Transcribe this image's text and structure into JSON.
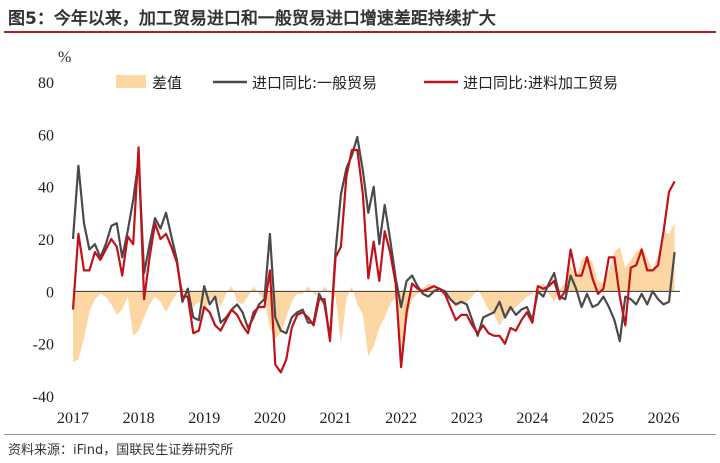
{
  "title": "图5：今年以来，加工贸易进口和一般贸易进口增速差距持续扩大",
  "source": "资料来源：iFind，国联民生证券研究所",
  "chart_data": {
    "type": "line",
    "ylabel": "%",
    "ylim": [
      -40,
      80
    ],
    "yticks": [
      -40,
      -20,
      0,
      20,
      40,
      60,
      80
    ],
    "xlim": [
      2017.0,
      2026.25
    ],
    "xticks": [
      "2017",
      "2018",
      "2019",
      "2020",
      "2021",
      "2022",
      "2023",
      "2024",
      "2025",
      "2026"
    ],
    "legend_position": "top",
    "colors": {
      "diff": "#fcd7a4",
      "general": "#4a4a4a",
      "processing": "#c0121a"
    },
    "series": [
      {
        "name": "差值",
        "type": "area",
        "x": [
          2017.0,
          2017.083,
          2017.167,
          2017.25,
          2017.333,
          2017.417,
          2017.5,
          2017.583,
          2017.667,
          2017.75,
          2017.833,
          2017.917,
          2018.0,
          2018.083,
          2018.167,
          2018.25,
          2018.333,
          2018.417,
          2018.5,
          2018.583,
          2018.667,
          2018.75,
          2018.833,
          2018.917,
          2019.0,
          2019.083,
          2019.167,
          2019.25,
          2019.333,
          2019.417,
          2019.5,
          2019.583,
          2019.667,
          2019.75,
          2019.833,
          2019.917,
          2020.0,
          2020.083,
          2020.167,
          2020.25,
          2020.333,
          2020.417,
          2020.5,
          2020.583,
          2020.667,
          2020.75,
          2020.833,
          2020.917,
          2021.0,
          2021.083,
          2021.167,
          2021.25,
          2021.333,
          2021.417,
          2021.5,
          2021.583,
          2021.667,
          2021.75,
          2021.833,
          2021.917,
          2022.0,
          2022.083,
          2022.167,
          2022.25,
          2022.333,
          2022.417,
          2022.5,
          2022.583,
          2022.667,
          2022.75,
          2022.833,
          2022.917,
          2023.0,
          2023.083,
          2023.167,
          2023.25,
          2023.333,
          2023.417,
          2023.5,
          2023.583,
          2023.667,
          2023.75,
          2023.833,
          2023.917,
          2024.0,
          2024.083,
          2024.167,
          2024.25,
          2024.333,
          2024.417,
          2024.5,
          2024.583,
          2024.667,
          2024.75,
          2024.833,
          2024.917,
          2025.0,
          2025.083,
          2025.167,
          2025.25,
          2025.333,
          2025.417,
          2025.5,
          2025.583,
          2025.667,
          2025.75,
          2025.833,
          2025.917,
          2026.0,
          2026.083,
          2026.167
        ],
        "values": [
          -27,
          -26,
          -18,
          -8,
          -3,
          -1,
          -2,
          -5,
          -9,
          -7,
          -2,
          -17,
          -15,
          -10,
          -5,
          -2,
          -4,
          -8,
          -4,
          -1,
          2,
          -3,
          -6,
          -4,
          -8,
          -3,
          -2,
          -6,
          -1,
          2,
          -4,
          -5,
          -2,
          2,
          -1,
          -3,
          -14,
          -18,
          -16,
          -10,
          -4,
          -1,
          -1,
          2,
          -1,
          -2,
          2,
          -1,
          -2,
          -20,
          -3,
          2,
          -5,
          -9,
          -25,
          -21,
          -14,
          -10,
          -5,
          -2,
          -23,
          -12,
          -3,
          -1,
          1,
          3,
          2,
          0,
          -1,
          -3,
          -6,
          -5,
          -4,
          -2,
          1,
          -3,
          -7,
          -9,
          -13,
          -10,
          -8,
          -6,
          -4,
          -2,
          -1,
          2,
          3,
          -1,
          -4,
          1,
          3,
          10,
          5,
          12,
          14,
          11,
          4,
          3,
          8,
          15,
          17,
          9,
          12,
          15,
          17,
          13,
          8,
          14,
          23,
          22,
          26
        ],
        "value_labels": []
      },
      {
        "name": "进口同比:一般贸易",
        "type": "line",
        "x": [
          2017.0,
          2017.083,
          2017.167,
          2017.25,
          2017.333,
          2017.417,
          2017.5,
          2017.583,
          2017.667,
          2017.75,
          2017.833,
          2017.917,
          2018.0,
          2018.083,
          2018.167,
          2018.25,
          2018.333,
          2018.417,
          2018.5,
          2018.583,
          2018.667,
          2018.75,
          2018.833,
          2018.917,
          2019.0,
          2019.083,
          2019.167,
          2019.25,
          2019.333,
          2019.417,
          2019.5,
          2019.583,
          2019.667,
          2019.75,
          2019.833,
          2019.917,
          2020.0,
          2020.083,
          2020.167,
          2020.25,
          2020.333,
          2020.417,
          2020.5,
          2020.583,
          2020.667,
          2020.75,
          2020.833,
          2020.917,
          2021.0,
          2021.083,
          2021.167,
          2021.25,
          2021.333,
          2021.417,
          2021.5,
          2021.583,
          2021.667,
          2021.75,
          2021.833,
          2021.917,
          2022.0,
          2022.083,
          2022.167,
          2022.25,
          2022.333,
          2022.417,
          2022.5,
          2022.583,
          2022.667,
          2022.75,
          2022.833,
          2022.917,
          2023.0,
          2023.083,
          2023.167,
          2023.25,
          2023.333,
          2023.417,
          2023.5,
          2023.583,
          2023.667,
          2023.75,
          2023.833,
          2023.917,
          2024.0,
          2024.083,
          2024.167,
          2024.25,
          2024.333,
          2024.417,
          2024.5,
          2024.583,
          2024.667,
          2024.75,
          2024.833,
          2024.917,
          2025.0,
          2025.083,
          2025.167,
          2025.25,
          2025.333,
          2025.417,
          2025.5,
          2025.583,
          2025.667,
          2025.75,
          2025.833,
          2025.917,
          2026.0,
          2026.083,
          2026.167
        ],
        "values": [
          20,
          48,
          26,
          16,
          18,
          13,
          18,
          25,
          26,
          13,
          23,
          35,
          50,
          7,
          18,
          28,
          24,
          30,
          21,
          12,
          -4,
          1,
          -10,
          -11,
          2,
          -5,
          -2,
          -12,
          -10,
          -7,
          -5,
          -8,
          -14,
          -10,
          -5,
          -3,
          22,
          -10,
          -15,
          -16,
          -10,
          -8,
          -7,
          -12,
          -12,
          -1,
          -5,
          -18,
          15,
          37,
          47,
          52,
          59,
          46,
          30,
          40,
          18,
          33,
          20,
          5,
          -6,
          4,
          6,
          2,
          -1,
          -2,
          0,
          1,
          0,
          -3,
          -5,
          -4,
          -5,
          -11,
          -17,
          -10,
          -9,
          -8,
          -4,
          -10,
          -6,
          -9,
          -7,
          -6,
          -11,
          0,
          -2,
          3,
          7,
          -2,
          -3,
          6,
          1,
          -6,
          -1,
          -6,
          -5,
          -2,
          -6,
          -11,
          -19,
          -2,
          -3,
          -5,
          -1,
          -5,
          0,
          -3,
          -5,
          -4,
          15
        ]
      },
      {
        "name": "进口同比:进料加工贸易",
        "type": "line",
        "x": [
          2017.0,
          2017.083,
          2017.167,
          2017.25,
          2017.333,
          2017.417,
          2017.5,
          2017.583,
          2017.667,
          2017.75,
          2017.833,
          2017.917,
          2018.0,
          2018.083,
          2018.167,
          2018.25,
          2018.333,
          2018.417,
          2018.5,
          2018.583,
          2018.667,
          2018.75,
          2018.833,
          2018.917,
          2019.0,
          2019.083,
          2019.167,
          2019.25,
          2019.333,
          2019.417,
          2019.5,
          2019.583,
          2019.667,
          2019.75,
          2019.833,
          2019.917,
          2020.0,
          2020.083,
          2020.167,
          2020.25,
          2020.333,
          2020.417,
          2020.5,
          2020.583,
          2020.667,
          2020.75,
          2020.833,
          2020.917,
          2021.0,
          2021.083,
          2021.167,
          2021.25,
          2021.333,
          2021.417,
          2021.5,
          2021.583,
          2021.667,
          2021.75,
          2021.833,
          2021.917,
          2022.0,
          2022.083,
          2022.167,
          2022.25,
          2022.333,
          2022.417,
          2022.5,
          2022.583,
          2022.667,
          2022.75,
          2022.833,
          2022.917,
          2023.0,
          2023.083,
          2023.167,
          2023.25,
          2023.333,
          2023.417,
          2023.5,
          2023.583,
          2023.667,
          2023.75,
          2023.833,
          2023.917,
          2024.0,
          2024.083,
          2024.167,
          2024.25,
          2024.333,
          2024.417,
          2024.5,
          2024.583,
          2024.667,
          2024.75,
          2024.833,
          2024.917,
          2025.0,
          2025.083,
          2025.167,
          2025.25,
          2025.333,
          2025.417,
          2025.5,
          2025.583,
          2025.667,
          2025.75,
          2025.833,
          2025.917,
          2026.0,
          2026.083,
          2026.167
        ],
        "values": [
          -7,
          22,
          8,
          8,
          15,
          12,
          16,
          20,
          17,
          6,
          21,
          18,
          55,
          -3,
          13,
          26,
          20,
          22,
          17,
          11,
          -2,
          -2,
          -16,
          -15,
          -6,
          -8,
          -13,
          -15,
          -11,
          -7,
          -9,
          -13,
          -16,
          -8,
          -6,
          -6,
          8,
          -28,
          -31,
          -26,
          -14,
          -9,
          -8,
          -10,
          -13,
          -3,
          -3,
          -19,
          13,
          17,
          44,
          54,
          54,
          37,
          5,
          19,
          4,
          23,
          15,
          3,
          -29,
          -8,
          3,
          1,
          0,
          1,
          2,
          1,
          -1,
          -6,
          -11,
          -9,
          -9,
          -13,
          -16,
          -13,
          -16,
          -17,
          -17,
          -20,
          -14,
          -15,
          -11,
          -8,
          -12,
          2,
          1,
          2,
          4,
          -3,
          0,
          16,
          6,
          6,
          13,
          5,
          -1,
          1,
          13,
          13,
          -2,
          -13,
          9,
          10,
          16,
          8,
          8,
          10,
          23,
          38,
          42
        ]
      }
    ]
  }
}
